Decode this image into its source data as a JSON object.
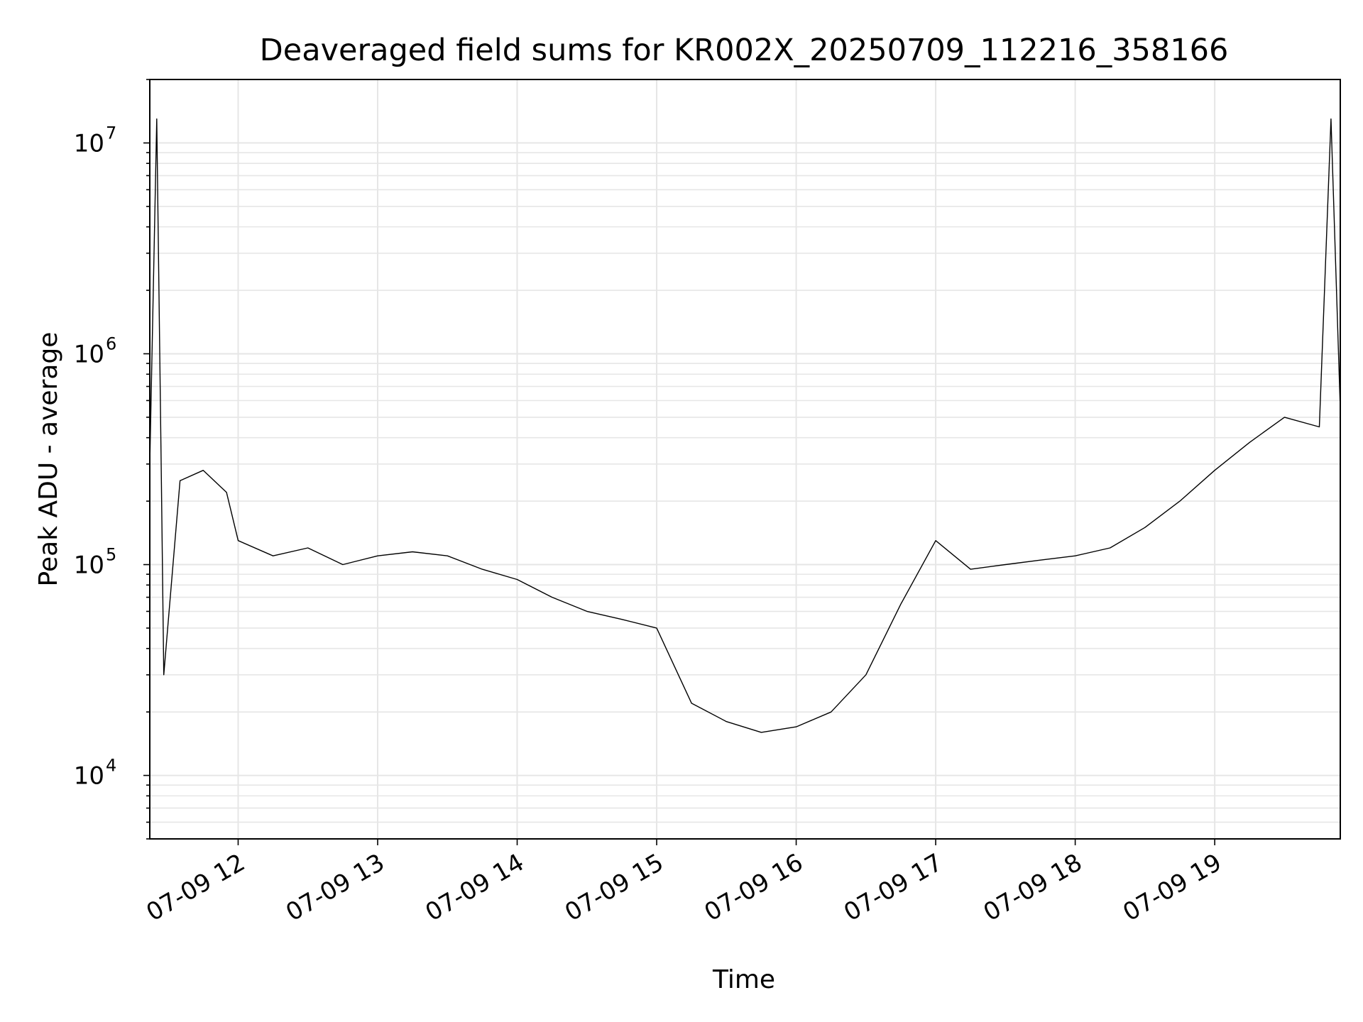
{
  "chart_data": {
    "type": "line",
    "title": "Deaveraged field sums for KR002X_20250709_112216_358166",
    "xlabel": "Time",
    "ylabel": "Peak ADU - average",
    "y_scale": "log",
    "ylim": [
      5000,
      20000000
    ],
    "xlim": [
      "2025-07-09 11:22",
      "2025-07-09 19:54"
    ],
    "x_ticks": [
      {
        "value": "2025-07-09 12:00",
        "label": "07-09 12"
      },
      {
        "value": "2025-07-09 13:00",
        "label": "07-09 13"
      },
      {
        "value": "2025-07-09 14:00",
        "label": "07-09 14"
      },
      {
        "value": "2025-07-09 15:00",
        "label": "07-09 15"
      },
      {
        "value": "2025-07-09 16:00",
        "label": "07-09 16"
      },
      {
        "value": "2025-07-09 17:00",
        "label": "07-09 17"
      },
      {
        "value": "2025-07-09 18:00",
        "label": "07-09 18"
      },
      {
        "value": "2025-07-09 19:00",
        "label": "07-09 19"
      }
    ],
    "y_ticks": [
      {
        "value": 10000,
        "base": "10",
        "exp": "4"
      },
      {
        "value": 100000,
        "base": "10",
        "exp": "5"
      },
      {
        "value": 1000000,
        "base": "10",
        "exp": "6"
      },
      {
        "value": 10000000,
        "base": "10",
        "exp": "7"
      }
    ],
    "grid": true,
    "line_color": "#000000",
    "grid_color": "#e6e6e6",
    "series": [
      {
        "x": [
          "2025-07-09 11:22",
          "2025-07-09 11:25",
          "2025-07-09 11:27",
          "2025-07-09 11:28",
          "2025-07-09 11:35",
          "2025-07-09 11:45",
          "2025-07-09 11:55",
          "2025-07-09 12:00",
          "2025-07-09 12:15",
          "2025-07-09 12:30",
          "2025-07-09 12:45",
          "2025-07-09 13:00",
          "2025-07-09 13:15",
          "2025-07-09 13:30",
          "2025-07-09 13:45",
          "2025-07-09 14:00",
          "2025-07-09 14:15",
          "2025-07-09 14:30",
          "2025-07-09 14:45",
          "2025-07-09 15:00",
          "2025-07-09 15:15",
          "2025-07-09 15:30",
          "2025-07-09 15:45",
          "2025-07-09 16:00",
          "2025-07-09 16:15",
          "2025-07-09 16:30",
          "2025-07-09 16:45",
          "2025-07-09 17:00",
          "2025-07-09 17:15",
          "2025-07-09 17:30",
          "2025-07-09 17:45",
          "2025-07-09 18:00",
          "2025-07-09 18:15",
          "2025-07-09 18:30",
          "2025-07-09 18:45",
          "2025-07-09 19:00",
          "2025-07-09 19:15",
          "2025-07-09 19:30",
          "2025-07-09 19:45",
          "2025-07-09 19:50",
          "2025-07-09 19:54"
        ],
        "y": [
          300000,
          13000000,
          240000,
          30000,
          250000,
          280000,
          220000,
          130000,
          110000,
          120000,
          100000,
          110000,
          115000,
          110000,
          95000,
          85000,
          70000,
          60000,
          55000,
          50000,
          22000,
          18000,
          16000,
          17000,
          20000,
          30000,
          65000,
          130000,
          95000,
          100000,
          105000,
          110000,
          120000,
          150000,
          200000,
          280000,
          380000,
          500000,
          450000,
          13000000,
          550000
        ]
      }
    ]
  }
}
